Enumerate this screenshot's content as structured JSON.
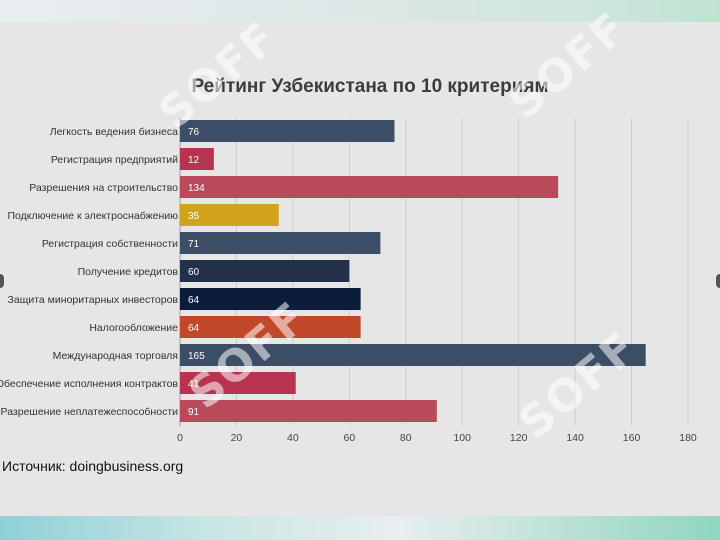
{
  "chart_data": {
    "type": "bar",
    "orientation": "horizontal",
    "title": "Рейтинг Узбекистана по 10 критериям",
    "categories": [
      "Легкость ведения бизнеса",
      "Регистрация предприятий",
      "Разрешения на строительство",
      "Подключение к электроснабжению",
      "Регистрация собственности",
      "Получение кредитов",
      "Защита миноритарных инвесторов",
      "Налогообложение",
      "Международная торговля",
      "Обеспечение исполнения контрактов",
      "Разрешение неплатежеспособности"
    ],
    "values": [
      76,
      12,
      134,
      35,
      71,
      60,
      64,
      64,
      165,
      41,
      91
    ],
    "bar_colors": [
      "#3c4d66",
      "#b8334f",
      "#b84a5c",
      "#d1a21c",
      "#3c4d66",
      "#22304a",
      "#0c1d3c",
      "#c2482a",
      "#3c4d66",
      "#b8334f",
      "#b84a5c"
    ],
    "xlim": [
      0,
      180
    ],
    "xticks": [
      0,
      20,
      40,
      60,
      80,
      100,
      120,
      140,
      160,
      180
    ],
    "grid": true,
    "xlabel": "",
    "ylabel": ""
  },
  "source": "Источник: doingbusiness.org",
  "watermark": "SOFF"
}
